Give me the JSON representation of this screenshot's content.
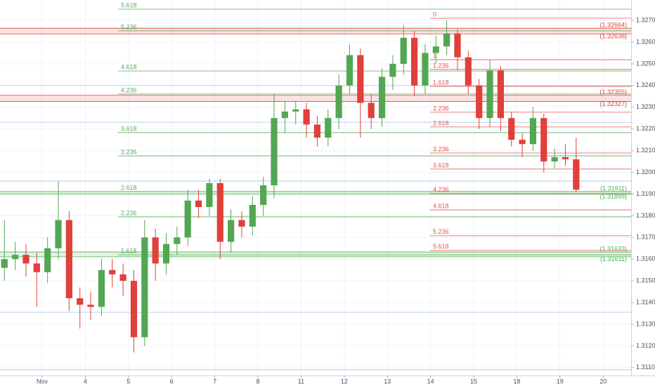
{
  "chart_data": {
    "type": "candlestick",
    "up_color": "#53a653",
    "down_color": "#e0403a",
    "grid": true,
    "x": [
      -0.875,
      -0.625,
      -0.375,
      -0.125,
      0.125,
      0.375,
      0.625,
      0.875,
      1.125,
      1.375,
      1.625,
      1.875,
      2.125,
      2.375,
      2.625,
      2.875,
      3.125,
      3.375,
      3.625,
      3.875,
      4.125,
      4.375,
      4.625,
      4.875,
      5.125,
      5.375,
      5.625,
      5.875,
      6.125,
      6.375,
      6.625,
      6.875,
      7.125,
      7.375,
      7.625,
      7.875,
      8.125,
      8.375,
      8.625,
      8.875,
      9.125,
      9.375,
      9.625,
      9.875,
      10.125,
      10.375,
      10.625,
      10.875,
      11.125,
      11.375,
      11.625,
      11.875,
      12.125,
      12.375
    ],
    "open": [
      1.3156,
      1.316,
      1.3162,
      1.3158,
      1.3154,
      1.3165,
      1.3178,
      1.3142,
      1.3139,
      1.3138,
      1.3155,
      1.3153,
      1.315,
      1.3124,
      1.317,
      1.3158,
      1.3167,
      1.317,
      1.3187,
      1.3184,
      1.3195,
      1.3168,
      1.3178,
      1.3175,
      1.3185,
      1.3194,
      1.3225,
      1.3228,
      1.3229,
      1.3222,
      1.3216,
      1.3225,
      1.324,
      1.3254,
      1.3232,
      1.3225,
      1.3244,
      1.325,
      1.3262,
      1.324,
      1.3255,
      1.3258,
      1.3264,
      1.3253,
      1.324,
      1.3225,
      1.3247,
      1.3225,
      1.3215,
      1.3213,
      1.3225,
      1.3205,
      1.3207,
      1.3206
    ],
    "high": [
      1.3178,
      1.3168,
      1.3167,
      1.3163,
      1.317,
      1.3196,
      1.3182,
      1.3147,
      1.3145,
      1.316,
      1.316,
      1.3158,
      1.3155,
      1.3178,
      1.3174,
      1.3172,
      1.3175,
      1.3192,
      1.3192,
      1.3197,
      1.3197,
      1.3183,
      1.3182,
      1.3189,
      1.3198,
      1.3236,
      1.3233,
      1.3233,
      1.3232,
      1.3226,
      1.3229,
      1.3245,
      1.3259,
      1.3257,
      1.3236,
      1.3248,
      1.3254,
      1.3268,
      1.3265,
      1.3259,
      1.3263,
      1.327,
      1.3266,
      1.3256,
      1.3243,
      1.3252,
      1.3249,
      1.3228,
      1.3218,
      1.323,
      1.3227,
      1.3211,
      1.3213,
      1.3216
    ],
    "low": [
      1.315,
      1.3155,
      1.3152,
      1.3138,
      1.3149,
      1.316,
      1.3136,
      1.3128,
      1.3132,
      1.3134,
      1.3147,
      1.3143,
      1.3117,
      1.312,
      1.315,
      1.3153,
      1.3162,
      1.3166,
      1.3179,
      1.318,
      1.316,
      1.3163,
      1.317,
      1.3171,
      1.318,
      1.3188,
      1.3218,
      1.3222,
      1.3216,
      1.3212,
      1.3212,
      1.322,
      1.3236,
      1.3216,
      1.322,
      1.3221,
      1.3238,
      1.3245,
      1.3235,
      1.3236,
      1.325,
      1.3254,
      1.3247,
      1.3236,
      1.322,
      1.3221,
      1.3219,
      1.3212,
      1.3207,
      1.321,
      1.32,
      1.3202,
      1.3203,
      1.3191
    ],
    "close": [
      1.316,
      1.3162,
      1.3158,
      1.3154,
      1.3165,
      1.3178,
      1.3142,
      1.3139,
      1.3138,
      1.3155,
      1.3153,
      1.315,
      1.3124,
      1.317,
      1.3158,
      1.3167,
      1.317,
      1.3187,
      1.3184,
      1.3195,
      1.3168,
      1.3178,
      1.3175,
      1.3185,
      1.3194,
      1.3225,
      1.3228,
      1.3229,
      1.3222,
      1.3216,
      1.3225,
      1.324,
      1.3254,
      1.3232,
      1.3225,
      1.3244,
      1.325,
      1.3262,
      1.324,
      1.3255,
      1.3258,
      1.3264,
      1.3253,
      1.324,
      1.3225,
      1.3247,
      1.3225,
      1.3215,
      1.3213,
      1.3225,
      1.3205,
      1.3207,
      1.3206,
      1.3192
    ],
    "xlim": [
      -0.977,
      13.648
    ],
    "ylim": [
      1.31064,
      1.32794
    ],
    "xticks": [
      {
        "value": 0,
        "label": "Nov"
      },
      {
        "value": 1,
        "label": "4"
      },
      {
        "value": 2,
        "label": "5"
      },
      {
        "value": 3,
        "label": "6"
      },
      {
        "value": 4,
        "label": "7"
      },
      {
        "value": 5,
        "label": "8"
      },
      {
        "value": 6,
        "label": "11"
      },
      {
        "value": 7,
        "label": "12"
      },
      {
        "value": 8,
        "label": "13"
      },
      {
        "value": 9,
        "label": "14"
      },
      {
        "value": 10,
        "label": "15"
      },
      {
        "value": 11,
        "label": "18"
      },
      {
        "value": 12,
        "label": "19"
      },
      {
        "value": 13,
        "label": "20"
      }
    ],
    "yticks": [
      {
        "value": 1.311,
        "label": "1.31100"
      },
      {
        "value": 1.312,
        "label": "1.31200"
      },
      {
        "value": 1.313,
        "label": "1.31300"
      },
      {
        "value": 1.314,
        "label": "1.31400"
      },
      {
        "value": 1.315,
        "label": "1.31500"
      },
      {
        "value": 1.316,
        "label": "1.31600"
      },
      {
        "value": 1.317,
        "label": "1.31700"
      },
      {
        "value": 1.318,
        "label": "1.31800"
      },
      {
        "value": 1.319,
        "label": "1.31900"
      },
      {
        "value": 1.32,
        "label": "1.32000"
      },
      {
        "value": 1.321,
        "label": "1.32100"
      },
      {
        "value": 1.322,
        "label": "1.32200"
      },
      {
        "value": 1.323,
        "label": "1.32300"
      },
      {
        "value": 1.324,
        "label": "1.32400"
      },
      {
        "value": 1.325,
        "label": "1.32500"
      },
      {
        "value": 1.326,
        "label": "1.32600"
      },
      {
        "value": 1.327,
        "label": "1.32700"
      }
    ],
    "fib_left": {
      "color": "#5aab5a",
      "levels": [
        {
          "label": "5.618",
          "value": 1.32752
        },
        {
          "label": "5.236",
          "value": 1.32652
        },
        {
          "label": "4.618",
          "value": 1.32467
        },
        {
          "label": "4.236",
          "value": 1.32361
        },
        {
          "label": "3.618",
          "value": 1.32183
        },
        {
          "label": "3.236",
          "value": 1.32076
        },
        {
          "label": "2.618",
          "value": 1.31911
        },
        {
          "label": "2.236",
          "value": 1.31795
        },
        {
          "label": "1.618",
          "value": 1.3162
        }
      ]
    },
    "fib_right": {
      "color": "#e0554f",
      "levels": [
        {
          "label": "0",
          "value": 1.3271
        },
        {
          "label": "1",
          "value": 1.32519
        },
        {
          "label": "1.236",
          "value": 1.32474
        },
        {
          "label": "1.618",
          "value": 1.32396
        },
        {
          "label": "2.236",
          "value": 1.32277
        },
        {
          "label": "2.618",
          "value": 1.32209
        },
        {
          "label": "3.236",
          "value": 1.32089
        },
        {
          "label": "3.618",
          "value": 1.32015
        },
        {
          "label": "4.236",
          "value": 1.31902
        },
        {
          "label": "4.618",
          "value": 1.31827
        },
        {
          "label": "5.236",
          "value": 1.31708
        },
        {
          "label": "5.618",
          "value": 1.3164
        }
      ]
    },
    "price_zones": [
      {
        "color": "#e0403a",
        "tags": [
          {
            "value": 1.32664,
            "label": "(1.32664)"
          },
          {
            "value": 1.32638,
            "label": "(1.32638)"
          }
        ]
      },
      {
        "color": "#e0403a",
        "tags": [
          {
            "value": 1.32355,
            "label": "(1.32355)"
          },
          {
            "value": 1.32327,
            "label": "(1.32327)"
          }
        ]
      },
      {
        "color": "#4caf50",
        "tags": [
          {
            "value": 1.31911,
            "label": "(1.31911)"
          },
          {
            "value": 1.31899,
            "label": "(1.31899)"
          }
        ]
      },
      {
        "color": "#4caf50",
        "tags": [
          {
            "value": 1.31633,
            "label": "(1.31633)"
          },
          {
            "value": 1.31611,
            "label": "(1.31611)"
          }
        ]
      }
    ],
    "horizontal_lines": {
      "color": "#9ec5ee",
      "values": [
        1.324,
        1.32231,
        1.3196,
        1.31355,
        1.3109
      ]
    }
  }
}
